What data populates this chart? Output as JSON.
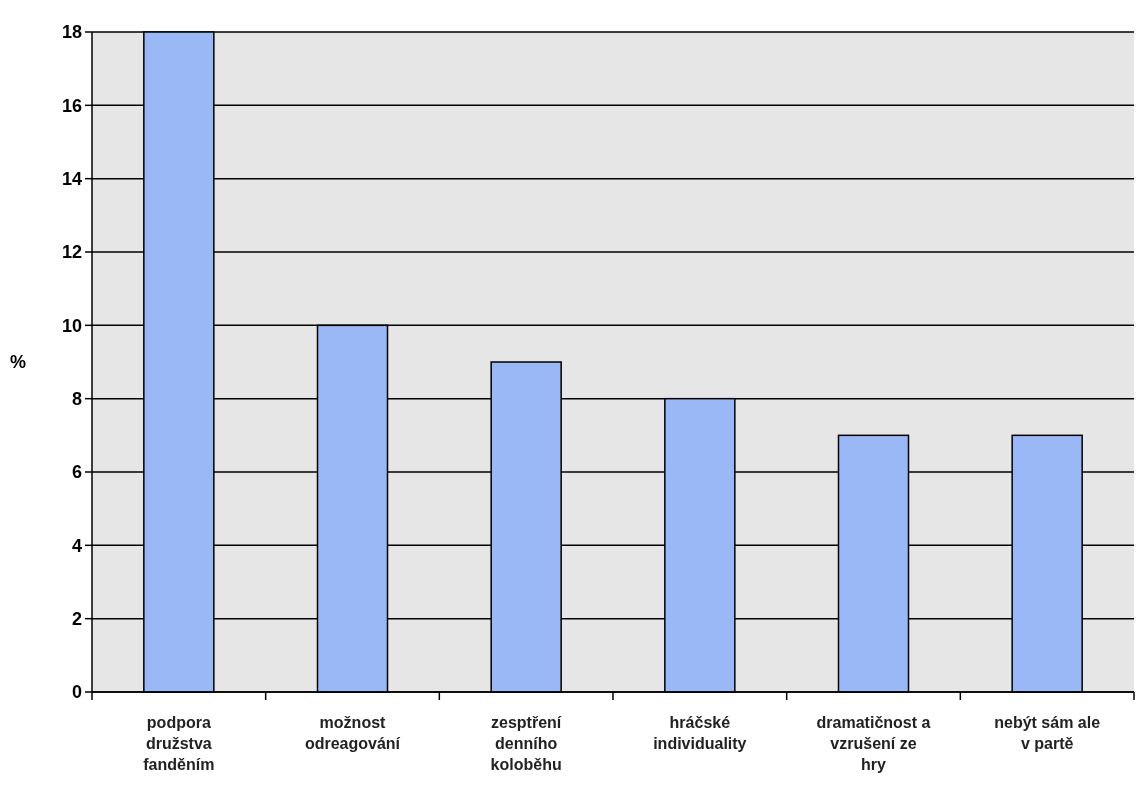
{
  "chart_data": {
    "type": "bar",
    "ylabel": "%",
    "categories": [
      "podpora družstva fanděním",
      "možnost odreagování",
      "zesptření denního koloběhu",
      "hráčské individuality",
      "dramatičnost a vzrušení ze hry",
      "nebýt sám ale v partě"
    ],
    "values": [
      18,
      10,
      9,
      8,
      7,
      7
    ],
    "color": "#99b8f5",
    "ylim": [
      0,
      18
    ],
    "yticks": [
      0,
      2,
      4,
      6,
      8,
      10,
      12,
      14,
      16,
      18
    ],
    "grid": "y"
  }
}
